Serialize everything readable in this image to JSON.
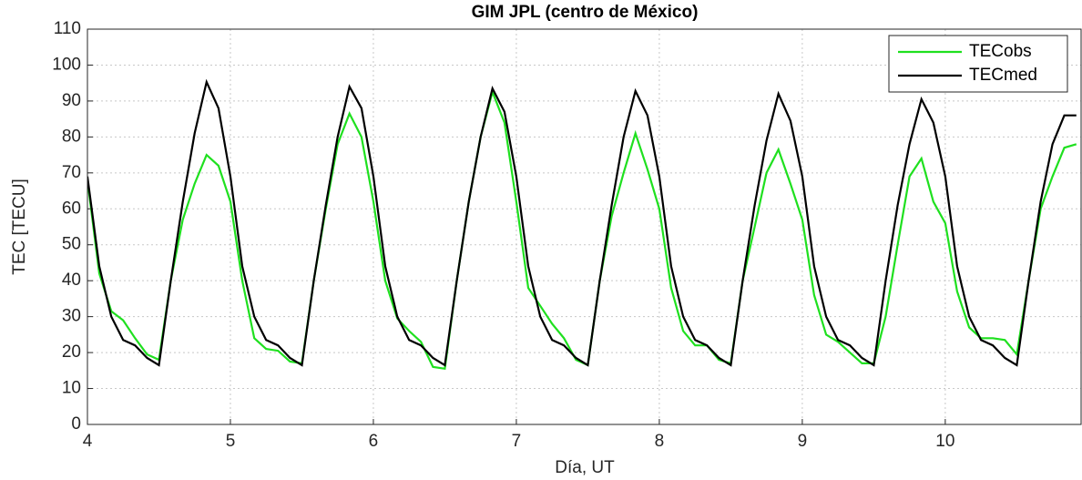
{
  "chart_data": {
    "type": "line",
    "title": "GIM JPL (centro de México)",
    "x_label": "Día, UT",
    "y_label": "TEC [TECU]",
    "x": [
      4,
      4.083,
      4.167,
      4.25,
      4.333,
      4.417,
      4.5,
      4.583,
      4.667,
      4.75,
      4.833,
      4.917,
      5,
      5.083,
      5.167,
      5.25,
      5.333,
      5.417,
      5.5,
      5.583,
      5.667,
      5.75,
      5.833,
      5.917,
      6,
      6.083,
      6.167,
      6.25,
      6.333,
      6.417,
      6.5,
      6.583,
      6.667,
      6.75,
      6.833,
      6.917,
      7,
      7.083,
      7.167,
      7.25,
      7.333,
      7.417,
      7.5,
      7.583,
      7.667,
      7.75,
      7.833,
      7.917,
      8,
      8.083,
      8.167,
      8.25,
      8.333,
      8.417,
      8.5,
      8.583,
      8.667,
      8.75,
      8.833,
      8.917,
      9,
      9.083,
      9.167,
      9.25,
      9.333,
      9.417,
      9.5,
      9.583,
      9.667,
      9.75,
      9.833,
      9.917,
      10,
      10.083,
      10.167,
      10.25,
      10.333,
      10.417,
      10.5,
      10.583,
      10.667,
      10.75,
      10.833,
      10.917
    ],
    "series": [
      {
        "name": "TECobs",
        "color": "#1fe01f",
        "values": [
          68,
          42,
          31.5,
          29,
          24,
          19.5,
          18,
          40,
          57,
          67,
          75,
          72,
          62,
          40,
          24,
          21,
          20.5,
          17.5,
          17,
          40,
          60,
          78,
          86.5,
          80,
          62,
          40,
          29.5,
          26,
          23,
          16,
          15.5,
          40,
          62,
          80,
          92.5,
          84,
          62,
          38,
          33,
          28,
          24,
          18,
          16.5,
          40,
          58,
          70,
          81,
          71,
          60,
          38,
          26,
          22,
          22,
          18,
          17,
          40,
          55,
          70,
          76.5,
          67,
          57,
          36,
          25,
          23,
          20,
          17,
          17,
          30,
          50,
          69,
          74,
          62,
          56,
          37,
          27,
          24,
          24,
          23.5,
          19.5,
          40,
          60,
          69,
          77,
          78
        ]
      },
      {
        "name": "TECmed",
        "color": "#000000",
        "values": [
          69,
          44,
          30,
          23.5,
          22,
          18.5,
          16.5,
          40,
          62,
          81,
          95.3,
          88,
          69,
          44,
          30,
          23.5,
          22,
          18.5,
          16.5,
          40,
          61,
          80,
          94,
          88,
          69,
          44,
          30,
          23.5,
          22,
          18.5,
          16.5,
          40,
          62,
          80,
          93.5,
          87,
          69,
          44,
          30,
          23.5,
          22,
          18.5,
          16.5,
          40,
          61,
          80,
          92.8,
          86,
          69,
          44,
          30,
          23.5,
          22,
          18.5,
          16.5,
          40,
          61,
          79,
          92,
          84.5,
          69,
          44,
          30,
          23.5,
          22,
          18.5,
          16.5,
          40,
          61,
          78,
          90.5,
          84,
          69,
          44,
          30,
          23.5,
          22,
          18.5,
          16.5,
          40,
          62,
          78,
          86,
          86
        ]
      }
    ],
    "xlim": [
      4,
      10.95
    ],
    "ylim": [
      0,
      110
    ],
    "xticks": [
      4,
      5,
      6,
      7,
      8,
      9,
      10
    ],
    "yticks": [
      0,
      10,
      20,
      30,
      40,
      50,
      60,
      70,
      80,
      90,
      100,
      110
    ],
    "grid": true,
    "legend": "upper right"
  }
}
